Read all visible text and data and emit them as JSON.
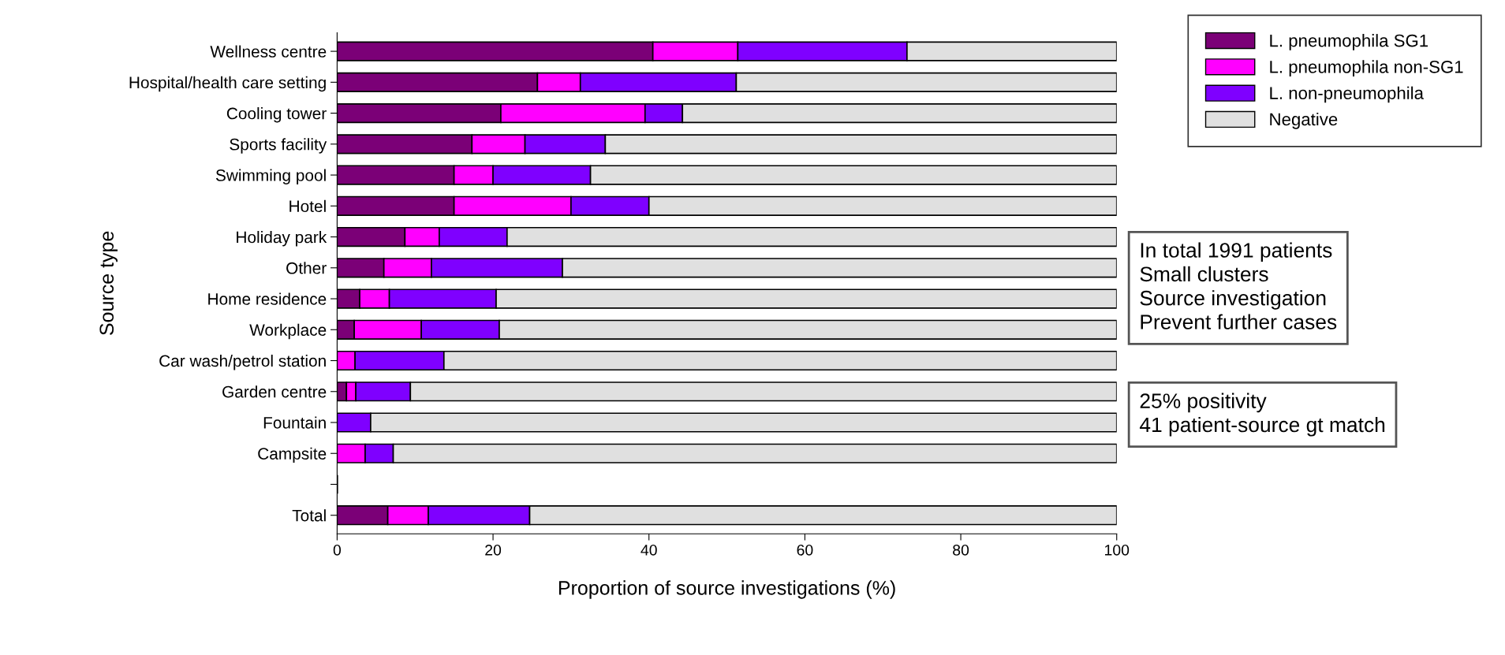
{
  "chart_data": {
    "type": "bar",
    "orientation": "horizontal",
    "stacked": true,
    "xlabel": "Proportion of source investigations (%)",
    "ylabel": "Source type",
    "categories": [
      "Wellness centre",
      "Hospital/health care setting",
      "Cooling tower",
      "Sports facility",
      "Swimming pool",
      "Hotel",
      "Holiday park",
      "Other",
      "Home residence",
      "Workplace",
      "Car wash/petrol station",
      "Garden centre",
      "Fountain",
      "Campsite",
      null,
      "Total"
    ],
    "series": [
      {
        "name": "L. pneumophila SG1",
        "color": "#7b0077",
        "values": [
          40.5,
          25.7,
          21.0,
          17.3,
          15.0,
          15.0,
          8.7,
          6.0,
          2.9,
          2.2,
          0,
          1.2,
          0,
          0,
          null,
          6.5
        ]
      },
      {
        "name": "L. pneumophila non-SG1",
        "color": "#ff00ff",
        "values": [
          10.9,
          5.5,
          18.5,
          6.8,
          5.0,
          15.0,
          4.4,
          6.1,
          3.8,
          8.6,
          2.3,
          1.2,
          0,
          3.6,
          null,
          5.2
        ]
      },
      {
        "name": "L. non-pneumophila",
        "color": "#7f00ff",
        "values": [
          21.7,
          20.0,
          4.8,
          10.3,
          12.5,
          10.0,
          8.7,
          16.8,
          13.7,
          10.0,
          11.4,
          7.0,
          4.3,
          3.6,
          null,
          13.0
        ]
      },
      {
        "name": "Negative",
        "color": "#e0e0e0",
        "values": [
          26.9,
          48.8,
          55.7,
          65.6,
          67.5,
          60.0,
          78.2,
          71.1,
          79.6,
          79.2,
          86.3,
          90.6,
          95.7,
          92.8,
          null,
          75.3
        ]
      }
    ],
    "xlim": [
      0,
      100
    ],
    "xticks": [
      0,
      20,
      40,
      60,
      80,
      100
    ],
    "legend": "top right",
    "grid": false,
    "annotations": [
      "In total 1991 patients\nSmall clusters\nSource investigation\nPrevent further cases",
      "25% positivity\n41 patient-source gt match"
    ]
  }
}
